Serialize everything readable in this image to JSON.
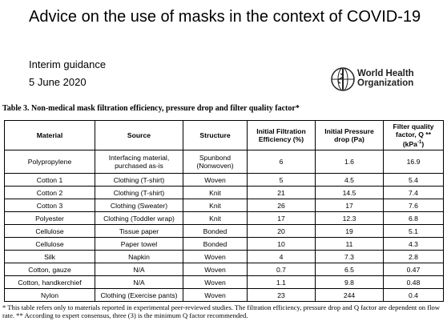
{
  "header": {
    "title": "Advice on the use of masks in the context of COVID-19",
    "subtitle": "Interim guidance",
    "date": "5 June 2020",
    "logo_lines": [
      "World Health",
      "Organization"
    ]
  },
  "table": {
    "caption": "Table 3. Non-medical mask filtration efficiency, pressure drop and filter quality factor*",
    "columns": [
      "Material",
      "Source",
      "Structure",
      "Initial Filtration Efficiency (%)",
      "Initial Pressure drop (Pa)",
      [
        "Filter quality factor, Q **",
        "(kPa",
        "-1",
        ")"
      ]
    ],
    "rows": [
      [
        "Polypropylene",
        "Interfacing material, purchased as-is",
        "Spunbond (Nonwoven)",
        "6",
        "1.6",
        "16.9"
      ],
      [
        "Cotton 1",
        "Clothing (T-shirt)",
        "Woven",
        "5",
        "4.5",
        "5.4"
      ],
      [
        "Cotton 2",
        "Clothing (T-shirt)",
        "Knit",
        "21",
        "14.5",
        "7.4"
      ],
      [
        "Cotton 3",
        "Clothing (Sweater)",
        "Knit",
        "26",
        "17",
        "7.6"
      ],
      [
        "Polyester",
        "Clothing (Toddler wrap)",
        "Knit",
        "17",
        "12.3",
        "6.8"
      ],
      [
        "Cellulose",
        "Tissue paper",
        "Bonded",
        "20",
        "19",
        "5.1"
      ],
      [
        "Cellulose",
        "Paper towel",
        "Bonded",
        "10",
        "11",
        "4.3"
      ],
      [
        "Silk",
        "Napkin",
        "Woven",
        "4",
        "7.3",
        "2.8"
      ],
      [
        "Cotton, gauze",
        "N/A",
        "Woven",
        "0.7",
        "6.5",
        "0.47"
      ],
      [
        "Cotton, handkerchief",
        "N/A",
        "Woven",
        "1.1",
        "9.8",
        "0.48"
      ],
      [
        "Nylon",
        "Clothing (Exercise pants)",
        "Woven",
        "23",
        "244",
        "0.4"
      ]
    ],
    "footnote": "* This table refers only to materials reported in experimental peer-reviewed studies. The filtration efficiency, pressure drop and Q factor are dependent on flow rate. ** According to expert consensus, three (3) is the minimum Q factor recommended."
  }
}
